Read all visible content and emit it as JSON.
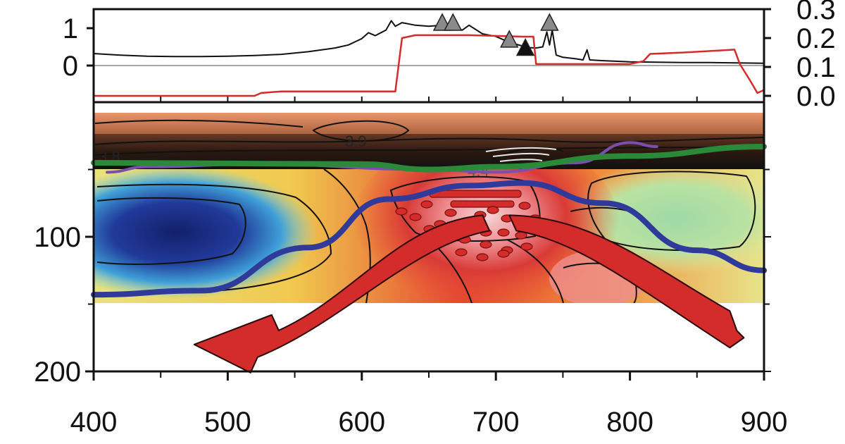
{
  "chart_data": [
    {
      "type": "line",
      "panel": "top",
      "title": "",
      "xlabel": "",
      "ylabel": "",
      "xlim": [
        400,
        900
      ],
      "ylim_left": [
        -1,
        1.5
      ],
      "ylim_right": [
        0.0,
        0.3
      ],
      "left_ticks": [
        "0",
        "1"
      ],
      "right_ticks": [
        "0.0",
        "0.1",
        "0.2",
        "0.3"
      ],
      "series": [
        {
          "color": "#111111",
          "axis": "left",
          "x": [
            400,
            420,
            440,
            460,
            480,
            500,
            520,
            540,
            560,
            580,
            590,
            600,
            605,
            610,
            618,
            622,
            625,
            630,
            640,
            650,
            660,
            668,
            675,
            680,
            690,
            700,
            710,
            720,
            725,
            730,
            735,
            738,
            740,
            742,
            745,
            750,
            760,
            765,
            768,
            770,
            780,
            800,
            820,
            840,
            860,
            880,
            900
          ],
          "y": [
            0.32,
            0.28,
            0.25,
            0.24,
            0.24,
            0.25,
            0.27,
            0.3,
            0.37,
            0.47,
            0.55,
            0.72,
            0.88,
            0.8,
            0.95,
            1.2,
            1.05,
            1.15,
            1.08,
            1.05,
            1.08,
            1.02,
            0.95,
            1.08,
            0.85,
            0.78,
            0.62,
            0.52,
            0.48,
            0.47,
            0.5,
            0.9,
            0.55,
            0.95,
            0.28,
            0.22,
            0.18,
            0.15,
            0.42,
            0.15,
            0.13,
            0.1,
            0.09,
            0.08,
            0.08,
            0.07,
            0.06
          ]
        },
        {
          "color": "#d52b2b",
          "axis": "right",
          "x": [
            400,
            520,
            525,
            540,
            600,
            625,
            630,
            640,
            650,
            680,
            720,
            728,
            730,
            760,
            800,
            810,
            815,
            840,
            860,
            878,
            882,
            890,
            895,
            900
          ],
          "y": [
            0.0,
            0.0,
            0.01,
            0.015,
            0.015,
            0.015,
            0.2,
            0.21,
            0.21,
            0.21,
            0.205,
            0.205,
            0.11,
            0.11,
            0.11,
            0.12,
            0.145,
            0.15,
            0.155,
            0.16,
            0.11,
            0.05,
            0.01,
            0.02
          ]
        }
      ],
      "markers": [
        {
          "x": 660,
          "y": 1.15,
          "color": "#8a8a8a"
        },
        {
          "x": 668,
          "y": 1.15,
          "color": "#8a8a8a"
        },
        {
          "x": 710,
          "y": 0.7,
          "color": "#8a8a8a"
        },
        {
          "x": 722,
          "y": 0.48,
          "color": "#111111"
        },
        {
          "x": 740,
          "y": 1.15,
          "color": "#8a8a8a"
        }
      ]
    },
    {
      "type": "heatmap",
      "panel": "bottom",
      "title": "",
      "xlabel": "",
      "ylabel": "",
      "xlim": [
        400,
        900
      ],
      "ylim": [
        0,
        200
      ],
      "y_inverted": true,
      "x_ticks": [
        "400",
        "500",
        "600",
        "700",
        "800",
        "900"
      ],
      "y_ticks": [
        "100",
        "200"
      ],
      "data_depth_range": [
        7,
        150
      ],
      "contour_labels": [
        "3.9",
        "3.8",
        "4.4"
      ],
      "anomalies": [
        {
          "x": 440,
          "depth": 100,
          "kind": "slow"
        },
        {
          "x": 700,
          "depth": 85,
          "kind": "fast"
        },
        {
          "x": 850,
          "depth": 100,
          "kind": "slow"
        }
      ],
      "boundary_lines": [
        {
          "color": "#2a8a3a",
          "x": [
            400,
            600,
            650,
            700,
            800,
            900
          ],
          "depth": [
            45,
            46,
            50,
            48,
            40,
            33
          ]
        },
        {
          "color": "#2f3a9a",
          "x": [
            400,
            480,
            560,
            620,
            680,
            720,
            780,
            850,
            900
          ],
          "depth": [
            143,
            140,
            108,
            72,
            62,
            60,
            75,
            110,
            125
          ]
        },
        {
          "color": "#7a4fb0",
          "x": [
            410,
            440,
            520,
            650,
            700,
            760,
            800,
            820
          ],
          "depth": [
            52,
            48,
            46,
            50,
            52,
            45,
            30,
            33
          ]
        }
      ],
      "flow_arrows": [
        {
          "color": "#d42b2b",
          "from": [
            690,
            85
          ],
          "to": [
            475,
            180
          ]
        },
        {
          "color": "#d42b2b",
          "from": [
            710,
            85
          ],
          "to": [
            885,
            175
          ]
        }
      ]
    }
  ]
}
